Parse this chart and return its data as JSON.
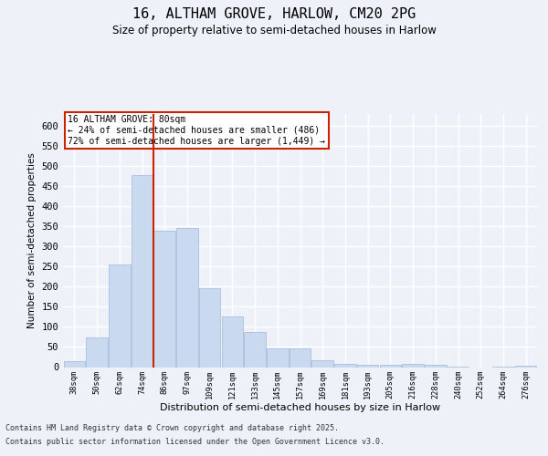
{
  "title_line1": "16, ALTHAM GROVE, HARLOW, CM20 2PG",
  "title_line2": "Size of property relative to semi-detached houses in Harlow",
  "xlabel": "Distribution of semi-detached houses by size in Harlow",
  "ylabel": "Number of semi-detached properties",
  "categories": [
    "38sqm",
    "50sqm",
    "62sqm",
    "74sqm",
    "86sqm",
    "97sqm",
    "109sqm",
    "121sqm",
    "133sqm",
    "145sqm",
    "157sqm",
    "169sqm",
    "181sqm",
    "193sqm",
    "205sqm",
    "216sqm",
    "228sqm",
    "240sqm",
    "252sqm",
    "264sqm",
    "276sqm"
  ],
  "values": [
    15,
    73,
    255,
    477,
    340,
    347,
    197,
    125,
    88,
    47,
    47,
    17,
    7,
    5,
    5,
    8,
    5,
    1,
    0,
    1,
    4
  ],
  "bar_color": "#c9d9f0",
  "bar_edge_color": "#a0b8d8",
  "vline_position": 3.5,
  "vline_color": "#cc2200",
  "annotation_title": "16 ALTHAM GROVE: 80sqm",
  "annotation_line1": "← 24% of semi-detached houses are smaller (486)",
  "annotation_line2": "72% of semi-detached houses are larger (1,449) →",
  "annotation_box_color": "#cc2200",
  "ylim": [
    0,
    630
  ],
  "yticks": [
    0,
    50,
    100,
    150,
    200,
    250,
    300,
    350,
    400,
    450,
    500,
    550,
    600
  ],
  "footer_line1": "Contains HM Land Registry data © Crown copyright and database right 2025.",
  "footer_line2": "Contains public sector information licensed under the Open Government Licence v3.0.",
  "bg_color": "#eef2f8",
  "grid_color": "#ffffff"
}
